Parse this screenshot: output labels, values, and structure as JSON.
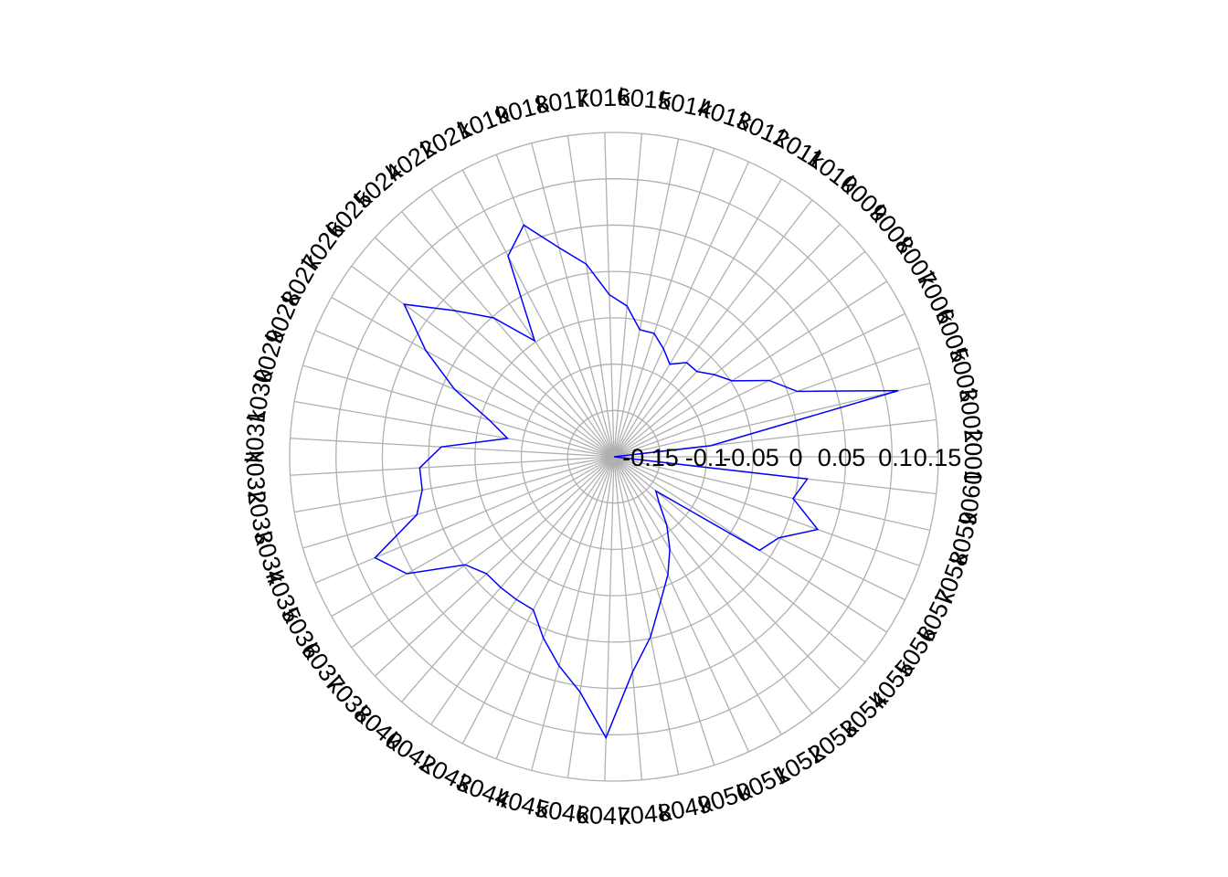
{
  "chart_data": {
    "type": "radar",
    "title": "",
    "categories": [
      "k001",
      "k002",
      "k003",
      "k005",
      "k006",
      "k007",
      "k008",
      "k009",
      "k010",
      "k011",
      "k012",
      "k013",
      "k014",
      "k015",
      "k016",
      "k017",
      "k018",
      "k019",
      "k021",
      "k022",
      "k024",
      "k025",
      "k026",
      "k027",
      "k028",
      "k029",
      "k030",
      "k031",
      "k032",
      "k033",
      "k034",
      "k035",
      "k036",
      "k037",
      "k038",
      "k040",
      "k042",
      "k043",
      "k044",
      "k045",
      "k046",
      "k047",
      "k048",
      "k049",
      "k050",
      "k051",
      "k052",
      "k053",
      "k054",
      "k055",
      "k056",
      "k057",
      "k058",
      "k059",
      "k060"
    ],
    "radial_ticks": [
      -0.15,
      -0.1,
      -0.05,
      0,
      0.05,
      0.1,
      0.15
    ],
    "radial_tick_labels": [
      "-0.15",
      "-0.1",
      "-0.05",
      "0",
      "0.05",
      "0.1",
      "0.15"
    ],
    "rlim": [
      -0.15,
      0.15
    ],
    "grid": true,
    "series": [
      {
        "color": "#0000ff",
        "values": [
          -0.15,
          -0.06,
          0.12,
          0.03,
          0.01,
          -0.02,
          -0.03,
          -0.04,
          -0.04,
          -0.05,
          -0.04,
          -0.03,
          -0.03,
          -0.01,
          0.0,
          0.03,
          0.05,
          0.08,
          0.06,
          -0.02,
          0.02,
          0.05,
          0.09,
          0.05,
          0.01,
          -0.03,
          -0.05,
          0.01,
          0.03,
          0.03,
          0.04,
          0.09,
          0.07,
          0.02,
          0.01,
          0.01,
          0.01,
          0.01,
          0.03,
          0.05,
          0.07,
          0.11,
          0.05,
          0.02,
          -0.01,
          -0.03,
          -0.05,
          -0.07,
          -0.09,
          -0.1,
          0.01,
          0.02,
          0.05,
          0.02,
          0.03
        ]
      }
    ]
  }
}
